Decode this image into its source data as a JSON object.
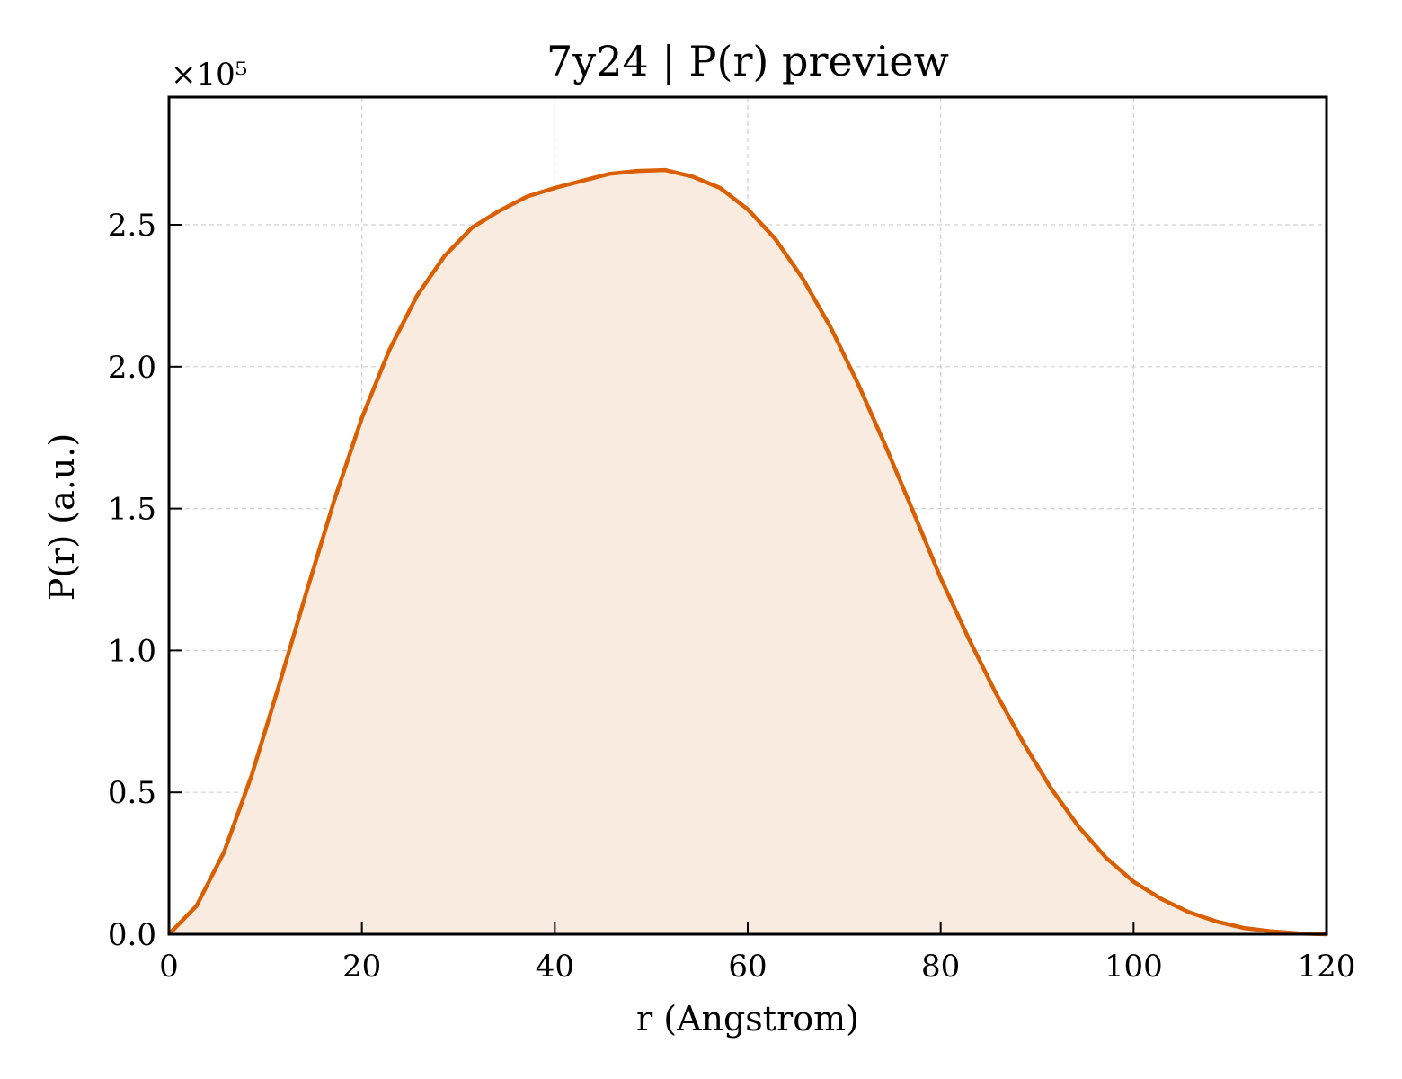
{
  "chart_data": {
    "type": "area",
    "title": "7y24 | P(r) preview",
    "xlabel": "r (Angstrom)",
    "ylabel": "P(r) (a.u.)",
    "y_offset_label": "×10⁵",
    "y_scale": 100000,
    "xlim": [
      0,
      120
    ],
    "ylim": [
      0,
      2.95
    ],
    "x_ticks": [
      0,
      20,
      40,
      60,
      80,
      100,
      120
    ],
    "x_tick_labels": [
      "0",
      "20",
      "40",
      "60",
      "80",
      "100",
      "120"
    ],
    "y_ticks": [
      0,
      0.5,
      1.0,
      1.5,
      2.0,
      2.5
    ],
    "y_tick_labels": [
      "0.0",
      "0.5",
      "1.0",
      "1.5",
      "2.0",
      "2.5"
    ],
    "grid": true,
    "colors": {
      "line": "#d95f02",
      "fill": "#f9ebe0"
    },
    "series": [
      {
        "x": [
          0,
          2.86,
          5.71,
          8.57,
          11.43,
          14.29,
          17.14,
          20.0,
          22.86,
          25.71,
          28.57,
          31.43,
          34.29,
          37.14,
          40.0,
          42.86,
          45.71,
          48.57,
          51.43,
          54.29,
          57.14,
          60.0,
          62.86,
          65.71,
          68.57,
          71.43,
          74.29,
          77.14,
          80.0,
          82.86,
          85.71,
          88.57,
          91.43,
          94.29,
          97.14,
          100.0,
          102.86,
          105.71,
          108.57,
          111.43,
          114.29,
          117.14,
          120.0
        ],
        "values": [
          0.0,
          0.1,
          0.29,
          0.56,
          0.88,
          1.21,
          1.53,
          1.82,
          2.06,
          2.25,
          2.39,
          2.49,
          2.55,
          2.6,
          2.63,
          2.655,
          2.68,
          2.69,
          2.693,
          2.67,
          2.63,
          2.555,
          2.45,
          2.31,
          2.14,
          1.94,
          1.72,
          1.49,
          1.255,
          1.045,
          0.85,
          0.675,
          0.515,
          0.38,
          0.27,
          0.185,
          0.125,
          0.078,
          0.045,
          0.022,
          0.01,
          0.003,
          0.0
        ]
      }
    ]
  }
}
